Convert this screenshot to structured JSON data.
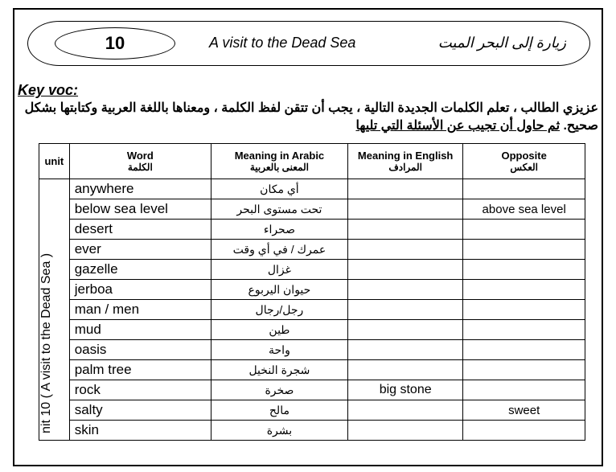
{
  "header": {
    "unit_number": "10",
    "title_en": "A visit to the Dead Sea",
    "title_ar": "زيارة إلى البحر الميت"
  },
  "key_voc_label": "Key voc:",
  "instructions": {
    "line1": "عزيزي الطالب ، تعلم الكلمات الجديدة التالية ، يجب أن تتقن لفظ الكلمة ، ومعناها باللغة العربية وكتابتها بشكل",
    "line2_plain": "صحيح.",
    "line2_underlined": "ثم حاول أن تجيب عن الأسئلة التي تليها"
  },
  "table": {
    "headers": {
      "unit": "unit",
      "word": "Word",
      "word_sub": "الكلمة",
      "meaning_ar": "Meaning in Arabic",
      "meaning_ar_sub": "المعنى بالعربية",
      "meaning_en": "Meaning in English",
      "meaning_en_sub": "المرادف",
      "opposite": "Opposite",
      "opposite_sub": "العكس"
    },
    "unit_label": "nit 10 ( A visit to the Dead Sea )",
    "rows": [
      {
        "word": "anywhere",
        "ar": "أي مكان",
        "en": "",
        "opp": ""
      },
      {
        "word": "below sea level",
        "ar": "تحت مستوى البحر",
        "en": "",
        "opp": "above sea level"
      },
      {
        "word": "desert",
        "ar": "صحراء",
        "en": "",
        "opp": ""
      },
      {
        "word": "ever",
        "ar": "عمرك / في أي وقت",
        "en": "",
        "opp": ""
      },
      {
        "word": "gazelle",
        "ar": "غزال",
        "en": "",
        "opp": ""
      },
      {
        "word": "jerboa",
        "ar": "حيوان اليربوع",
        "en": "",
        "opp": ""
      },
      {
        "word": "man / men",
        "ar": "رجل/رجال",
        "en": "",
        "opp": ""
      },
      {
        "word": "mud",
        "ar": "طين",
        "en": "",
        "opp": ""
      },
      {
        "word": "oasis",
        "ar": "واحة",
        "en": "",
        "opp": ""
      },
      {
        "word": "palm tree",
        "ar": "شجرة النخيل",
        "en": "",
        "opp": ""
      },
      {
        "word": "rock",
        "ar": "صخرة",
        "en": "big stone",
        "opp": ""
      },
      {
        "word": "salty",
        "ar": "مالح",
        "en": "",
        "opp": "sweet"
      },
      {
        "word": "skin",
        "ar": "بشرة",
        "en": "",
        "opp": ""
      }
    ]
  },
  "style": {
    "border_color": "#000000",
    "background": "#ffffff",
    "title_fontsize": 18,
    "number_fontsize": 22,
    "body_fontsize": 16,
    "table_header_fontsize": 13
  }
}
